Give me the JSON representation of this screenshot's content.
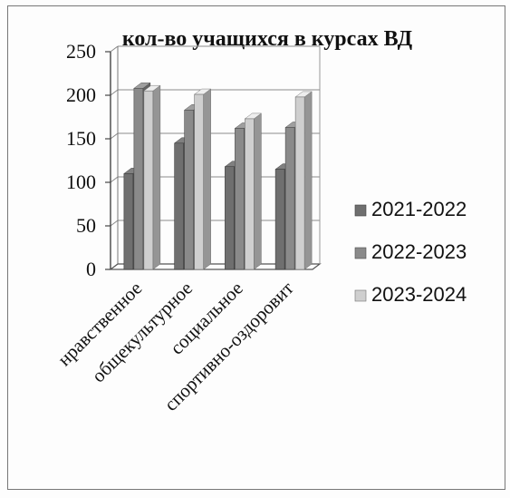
{
  "chart_data": {
    "type": "bar",
    "title": "кол-во учащихся  в курсах ВД",
    "categories": [
      "нравственное",
      "общекультурное",
      "социальное",
      "спортивно-оздоровит"
    ],
    "series": [
      {
        "name": "2021-2022",
        "values": [
          110,
          145,
          118,
          115
        ],
        "color": "#6f6f6f"
      },
      {
        "name": "2022-2023",
        "values": [
          208,
          183,
          162,
          163
        ],
        "color": "#8a8a8a"
      },
      {
        "name": "2023-2024",
        "values": [
          205,
          201,
          173,
          198
        ],
        "color": "#cfcfcf"
      }
    ],
    "ylim": [
      0,
      250
    ],
    "yticks": [
      "0",
      "50",
      "100",
      "150",
      "200",
      "250"
    ],
    "grid": true,
    "legend_position": "right"
  }
}
